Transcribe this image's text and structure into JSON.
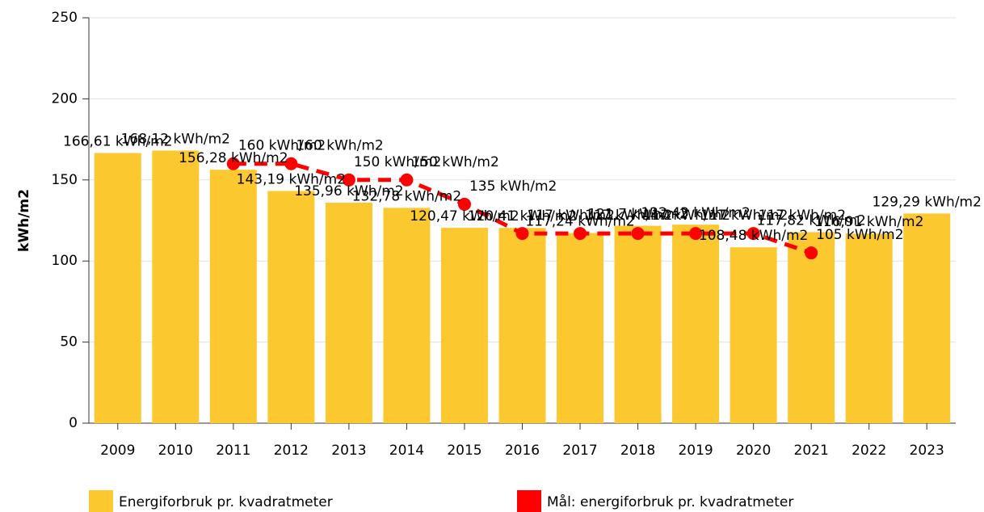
{
  "chart_data": {
    "type": "bar",
    "ylabel": "kWh/m2",
    "categories": [
      "2009",
      "2010",
      "2011",
      "2012",
      "2013",
      "2014",
      "2015",
      "2016",
      "2017",
      "2018",
      "2019",
      "2020",
      "2021",
      "2022",
      "2023"
    ],
    "series": [
      {
        "name": "Energiforbruk pr. kvadratmeter",
        "type": "bar",
        "color": "#fcc82f",
        "values": [
          166.61,
          168.12,
          156.28,
          143.19,
          135.96,
          132.78,
          120.47,
          120.41,
          117.24,
          121.7,
          122.43,
          108.48,
          117.82,
          116.91,
          129.29
        ],
        "value_labels": [
          "166,61 kWh/m2",
          "168,12 kWh/m2",
          "156,28 kWh/m2",
          "143,19 kWh/m2",
          "135,96 kWh/m2",
          "132,78 kWh/m2",
          "120,47 kWh/m2",
          "120,41 kWh/m2",
          "117,24 kWh/m2",
          "121,7 kWh/m2",
          "122,43 kWh/m2",
          "108,48 kWh/m2",
          "117,82 kWh/m2",
          "116,91 kWh/m2",
          "129,29 kWh/m2"
        ]
      },
      {
        "name": "Mål: energiforbruk pr. kvadratmeter",
        "type": "line",
        "color": "#ff0000",
        "values": [
          null,
          null,
          160,
          160,
          150,
          150,
          135,
          117,
          117,
          117,
          117,
          117,
          105,
          null,
          null
        ],
        "value_labels": [
          null,
          null,
          "160 kWh/m2",
          "160 kWh/m2",
          "150 kWh/m2",
          "150 kWh/m2",
          "135 kWh/m2",
          "117 kWh/m2",
          "117 kWh/m2",
          "117 kWh/m2",
          "117 kWh/m2",
          "117 kWh/m2",
          "105 kWh/m2",
          null,
          null
        ]
      }
    ],
    "ylim": [
      0,
      250
    ],
    "yticks": [
      0,
      50,
      100,
      150,
      200,
      250
    ],
    "grid": true
  }
}
